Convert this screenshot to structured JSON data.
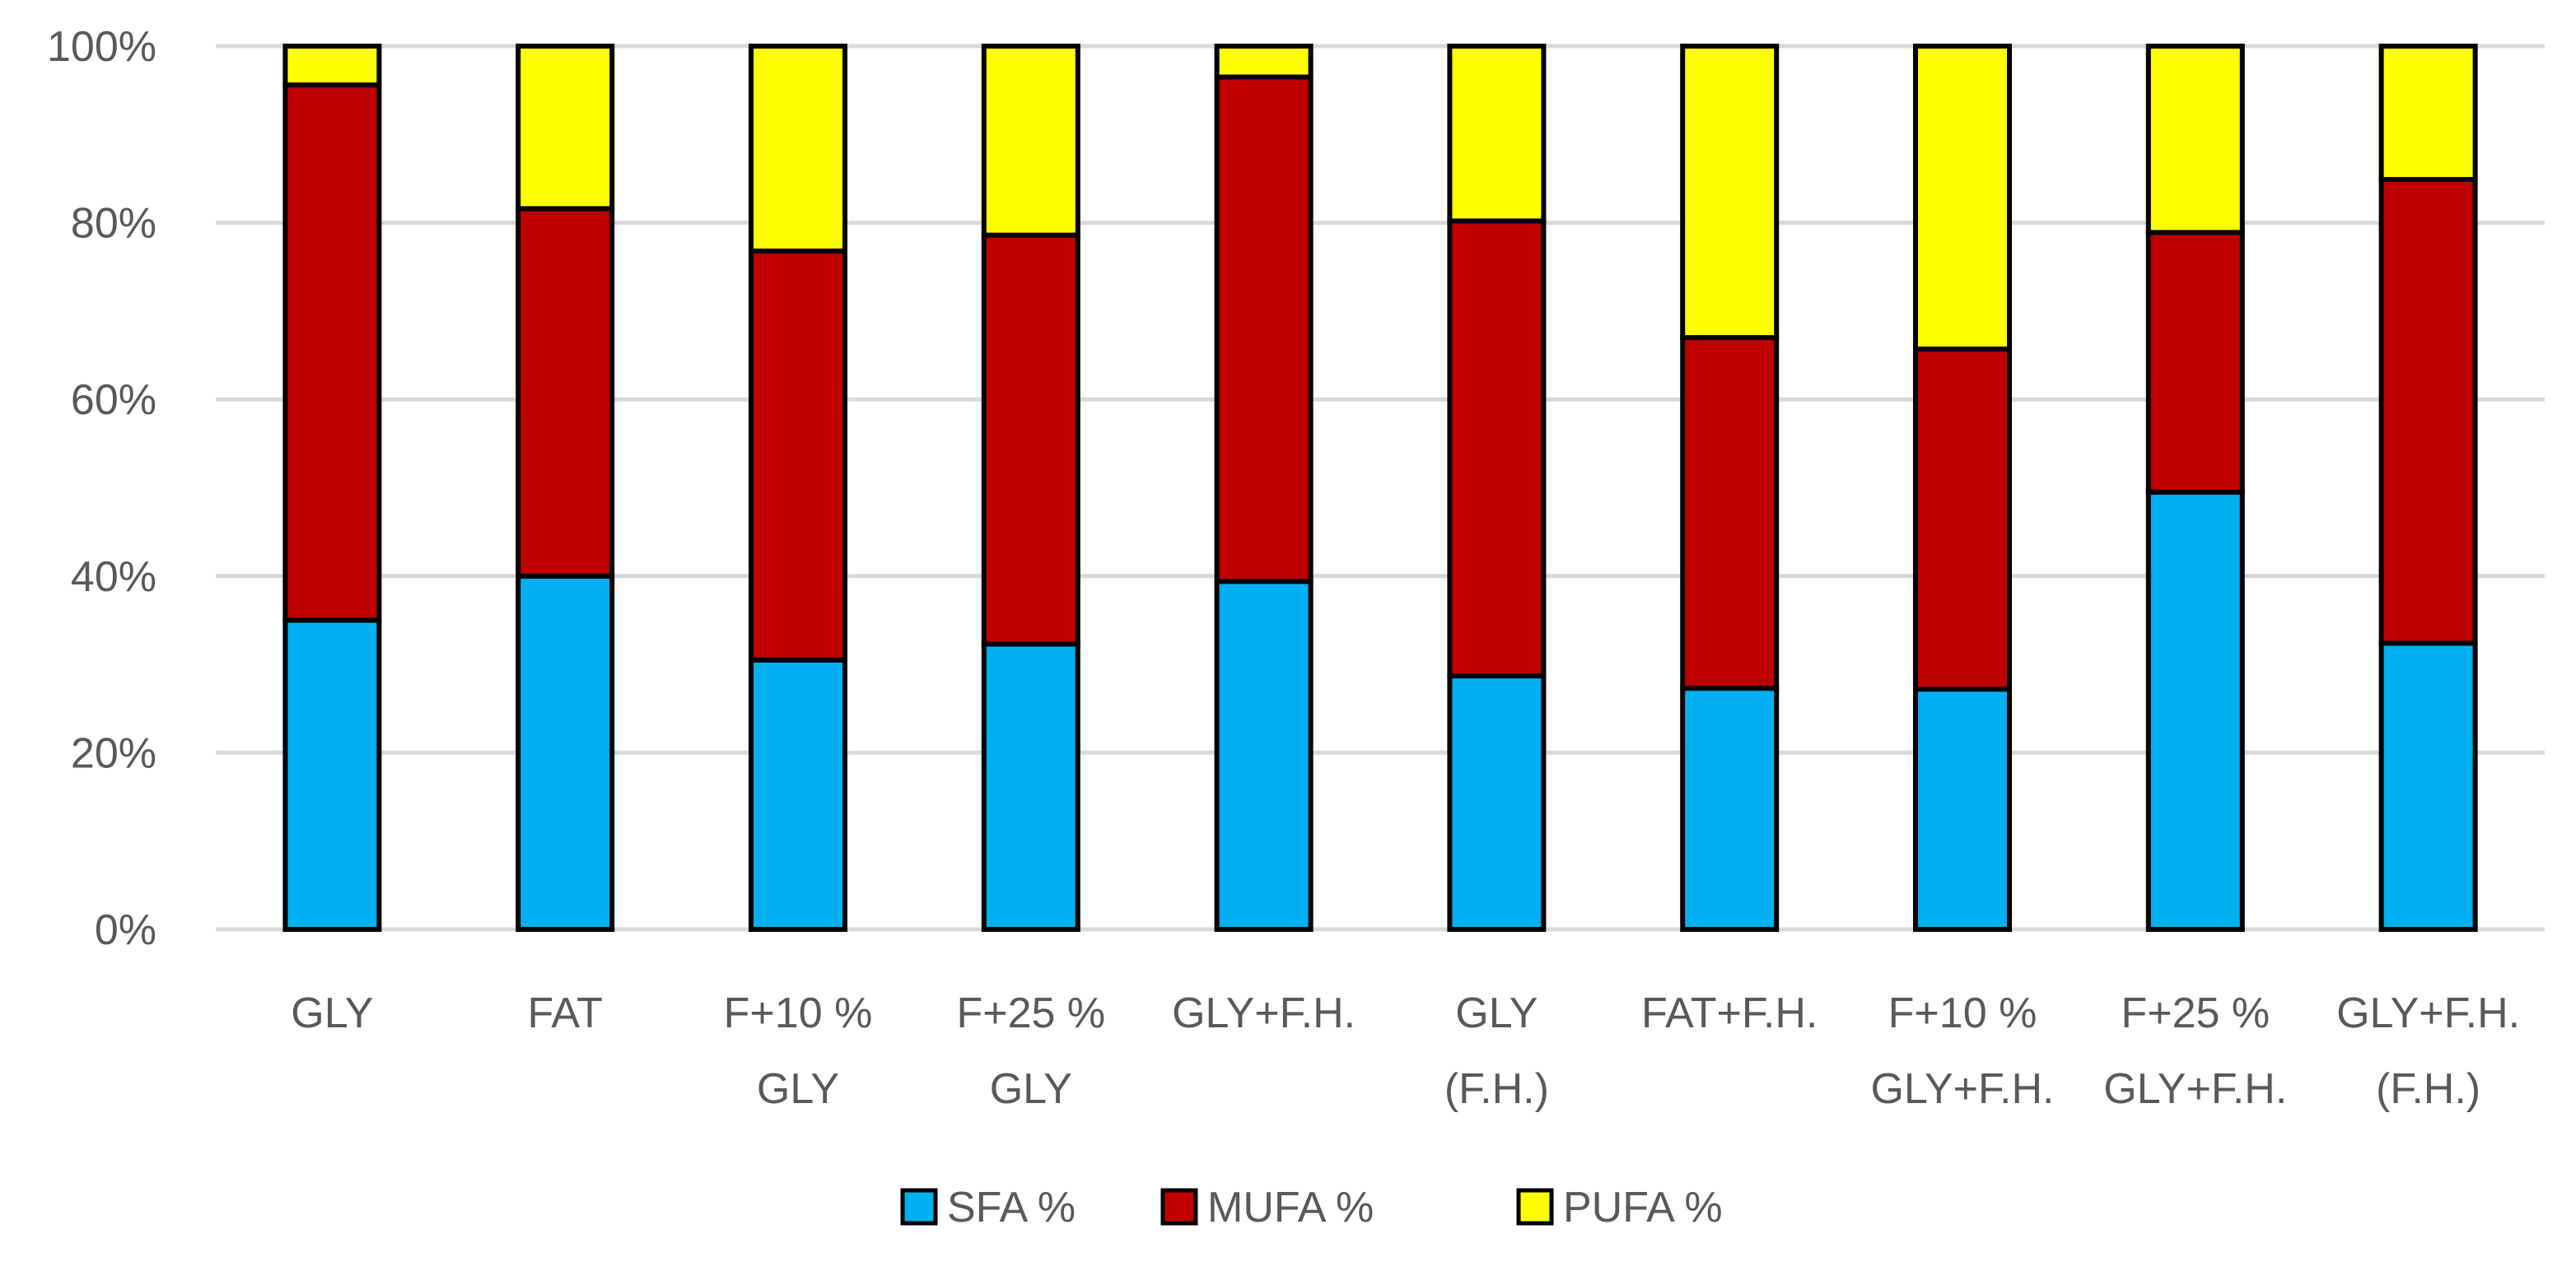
{
  "chart_data": {
    "type": "bar",
    "stacked": true,
    "percent_stacked": true,
    "title": "",
    "xlabel": "",
    "ylabel": "",
    "ylim": [
      0,
      100
    ],
    "y_ticks": [
      "0%",
      "20%",
      "40%",
      "60%",
      "80%",
      "100%"
    ],
    "grid": true,
    "legend_position": "bottom-center",
    "categories": [
      [
        "GLY"
      ],
      [
        "FAT"
      ],
      [
        "F+10 %",
        "GLY"
      ],
      [
        "F+25 %",
        "GLY"
      ],
      [
        "GLY+F.H."
      ],
      [
        "GLY",
        "(F.H.)"
      ],
      [
        "FAT+F.H."
      ],
      [
        "F+10 %",
        "GLY+F.H."
      ],
      [
        "F+25 %",
        "GLY+F.H."
      ],
      [
        "GLY+F.H.",
        "(F.H.)"
      ]
    ],
    "series": [
      {
        "name": "SFA %",
        "color": "#00B0F0",
        "values": [
          35,
          40,
          30.5,
          32.3,
          39.4,
          28.7,
          27.3,
          27.2,
          49.5,
          32.4
        ]
      },
      {
        "name": "MUFA %",
        "color": "#C00000",
        "values": [
          60.6,
          41.6,
          46.3,
          46.3,
          57.1,
          51.5,
          39.7,
          38.5,
          29.4,
          52.5
        ]
      },
      {
        "name": "PUFA %",
        "color": "#FFFF00",
        "values": [
          4.4,
          18.4,
          23.2,
          21.4,
          3.5,
          19.8,
          33,
          34.3,
          21.1,
          15.1
        ]
      }
    ]
  }
}
